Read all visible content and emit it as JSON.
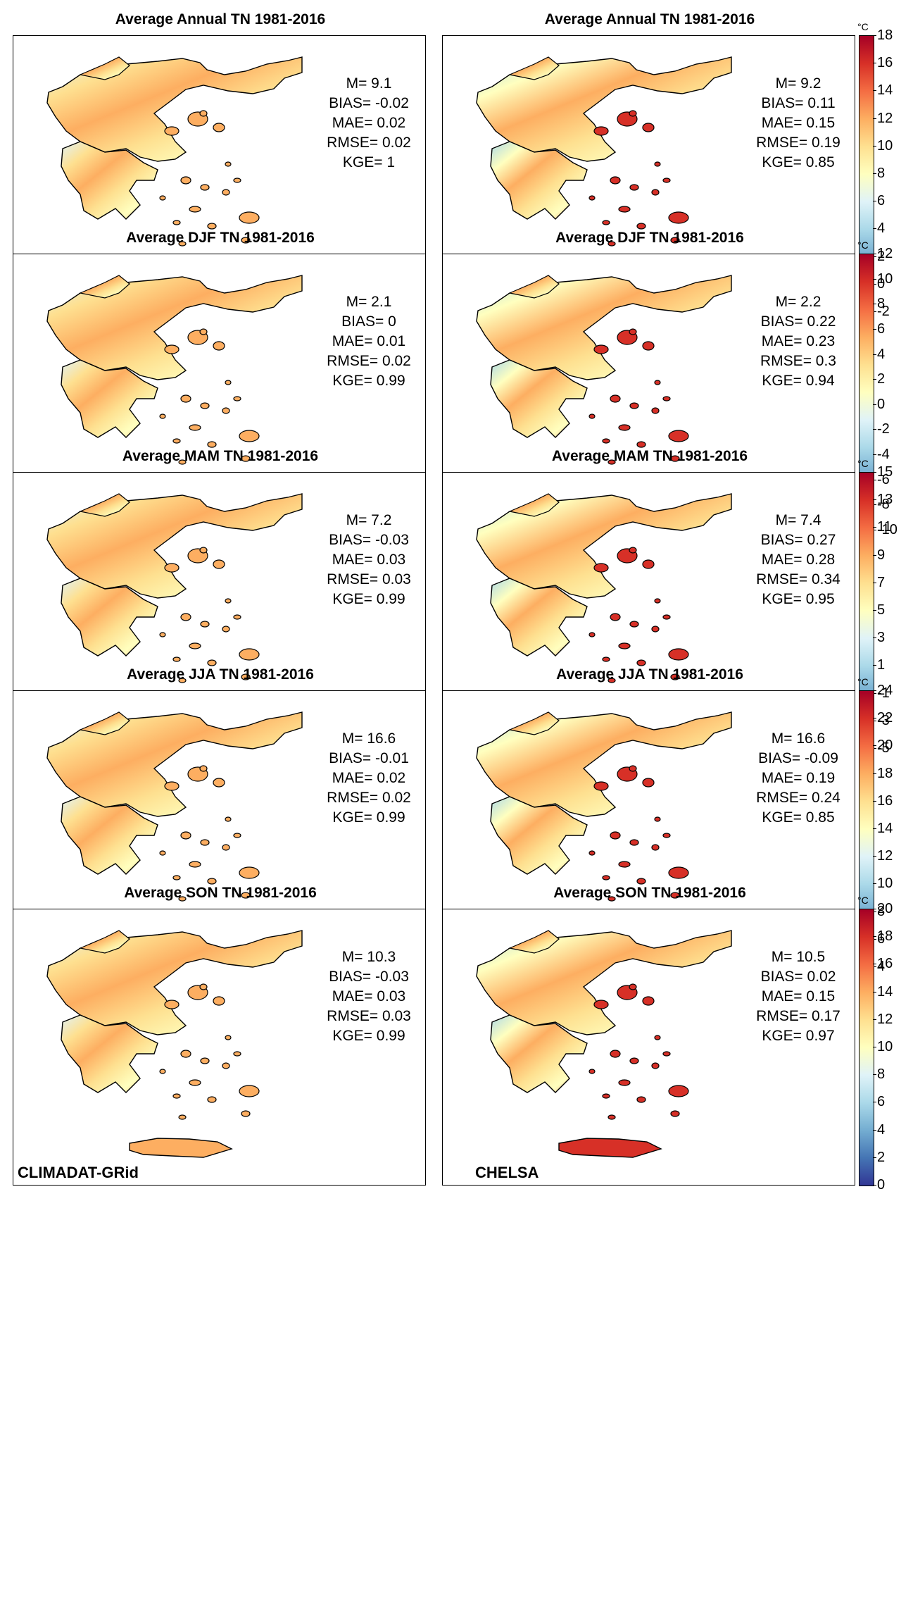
{
  "source_labels": {
    "left": "CLIMADAT-GRid",
    "right": "CHELSA"
  },
  "colorbar": {
    "unit": "°C",
    "colors": [
      "#313695",
      "#4575b4",
      "#74add1",
      "#abd9e9",
      "#e0f3f8",
      "#ffffbf",
      "#fee090",
      "#fdae61",
      "#f46d43",
      "#d73027",
      "#a50026"
    ]
  },
  "rows": [
    {
      "title_left": "Average Annual TN 1981-2016",
      "title_right": "Average Annual TN 1981-2016",
      "left": {
        "m": "M= 9.1",
        "bias": "BIAS= -0.02",
        "mae": "MAE= 0.02",
        "rmse": "RMSE= 0.02",
        "kge": "KGE= 1"
      },
      "right": {
        "m": "M= 9.2",
        "bias": "BIAS= 0.11",
        "mae": "MAE= 0.15",
        "rmse": "RMSE= 0.19",
        "kge": "KGE= 0.85"
      },
      "cbar_ticks": [
        "18",
        "16",
        "14",
        "12",
        "10",
        "8",
        "6",
        "4",
        "2",
        "0",
        "-2"
      ]
    },
    {
      "title_left": "Average DJF TN 1981-2016",
      "title_right": "Average DJF TN 1981-2016",
      "left": {
        "m": "M= 2.1",
        "bias": "BIAS= 0",
        "mae": "MAE= 0.01",
        "rmse": "RMSE= 0.02",
        "kge": "KGE= 0.99"
      },
      "right": {
        "m": "M= 2.2",
        "bias": "BIAS= 0.22",
        "mae": "MAE= 0.23",
        "rmse": "RMSE= 0.3",
        "kge": "KGE= 0.94"
      },
      "cbar_ticks": [
        "12",
        "10",
        "8",
        "6",
        "4",
        "2",
        "0",
        "-2",
        "-4",
        "-6",
        "-8",
        "-10"
      ]
    },
    {
      "title_left": "Average MAM TN 1981-2016",
      "title_right": "Average MAM TN 1981-2016",
      "left": {
        "m": "M= 7.2",
        "bias": "BIAS= -0.03",
        "mae": "MAE= 0.03",
        "rmse": "RMSE= 0.03",
        "kge": "KGE= 0.99"
      },
      "right": {
        "m": "M= 7.4",
        "bias": "BIAS= 0.27",
        "mae": "MAE= 0.28",
        "rmse": "RMSE= 0.34",
        "kge": "KGE= 0.95"
      },
      "cbar_ticks": [
        "15",
        "13",
        "11",
        "9",
        "7",
        "5",
        "3",
        "1",
        "-1",
        "-3",
        "-5"
      ]
    },
    {
      "title_left": "Average JJA TN 1981-2016",
      "title_right": "Average JJA TN 1981-2016",
      "left": {
        "m": "M= 16.6",
        "bias": "BIAS= -0.01",
        "mae": "MAE= 0.02",
        "rmse": "RMSE= 0.02",
        "kge": "KGE= 0.99"
      },
      "right": {
        "m": "M= 16.6",
        "bias": "BIAS= -0.09",
        "mae": "MAE= 0.19",
        "rmse": "RMSE= 0.24",
        "kge": "KGE= 0.85"
      },
      "cbar_ticks": [
        "24",
        "22",
        "20",
        "18",
        "16",
        "14",
        "12",
        "10",
        "8",
        "6",
        "4"
      ]
    },
    {
      "title_left": "Average SON TN 1981-2016",
      "title_right": "Average SON TN 1981-2016",
      "left": {
        "m": "M= 10.3",
        "bias": "BIAS= -0.03",
        "mae": "MAE= 0.03",
        "rmse": "RMSE= 0.03",
        "kge": "KGE= 0.99"
      },
      "right": {
        "m": "M= 10.5",
        "bias": "BIAS= 0.02",
        "mae": "MAE= 0.15",
        "rmse": "RMSE= 0.17",
        "kge": "KGE= 0.97"
      },
      "cbar_ticks": [
        "20",
        "18",
        "16",
        "14",
        "12",
        "10",
        "8",
        "6",
        "4",
        "2",
        "0"
      ]
    }
  ]
}
